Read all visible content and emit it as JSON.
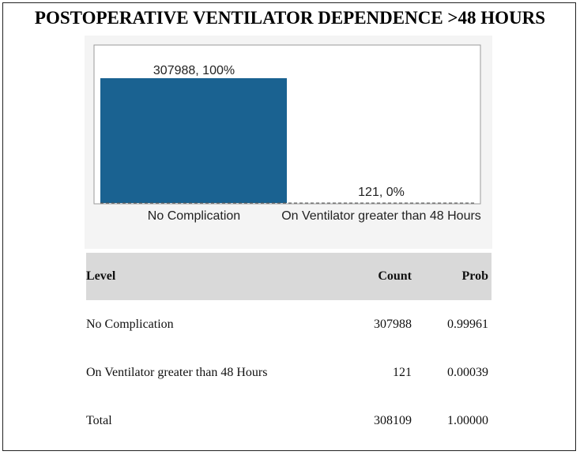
{
  "title": "POSTOPERATIVE VENTILATOR DEPENDENCE >48 HOURS",
  "chart_data": {
    "type": "bar",
    "categories": [
      "No Complication",
      "On Ventilator greater than 48 Hours"
    ],
    "values": [
      307988,
      121
    ],
    "value_labels": [
      "307988, 100%",
      "121, 0%"
    ],
    "color": "#1a6291"
  },
  "table": {
    "header": [
      "Level",
      "Count",
      "Prob"
    ],
    "rows": [
      [
        "No Complication",
        "307988",
        "0.99961"
      ],
      [
        "On Ventilator greater than 48 Hours",
        "121",
        "0.00039"
      ],
      [
        "Total",
        "308109",
        "1.00000"
      ]
    ]
  }
}
